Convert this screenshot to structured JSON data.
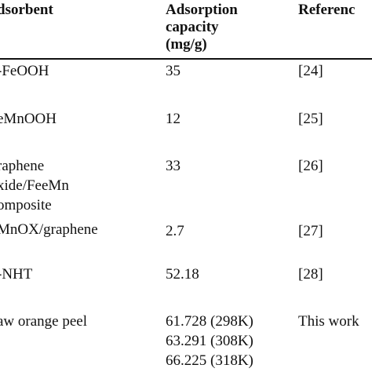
{
  "table": {
    "headers": {
      "adsorbent": "dsorbent",
      "capacity_line1": "Adsorption",
      "capacity_line2": "capacity",
      "capacity_line3": "(mg/g)",
      "reference": "Referenc"
    },
    "rows": [
      {
        "adsorbent": [
          "-FeOOH"
        ],
        "capacity": [
          "35"
        ],
        "reference": "[24]"
      },
      {
        "adsorbent": [
          "eMnOOH"
        ],
        "capacity": [
          "12"
        ],
        "reference": "[25]"
      },
      {
        "adsorbent": [
          "raphene",
          "xide/FeeMn",
          "omposite"
        ],
        "capacity": [
          "33"
        ],
        "reference": "[26]"
      },
      {
        "adsorbent": [
          "MnOX/graphene"
        ],
        "capacity": [
          "2.7"
        ],
        "reference": "[27]"
      },
      {
        "adsorbent": [
          "-NHT"
        ],
        "capacity": [
          "52.18"
        ],
        "reference": "[28]"
      },
      {
        "adsorbent": [
          "aw orange peel"
        ],
        "capacity": [
          "61.728 (298K)",
          "63.291 (308K)",
          "66.225 (318K)"
        ],
        "reference": "This work"
      }
    ]
  }
}
